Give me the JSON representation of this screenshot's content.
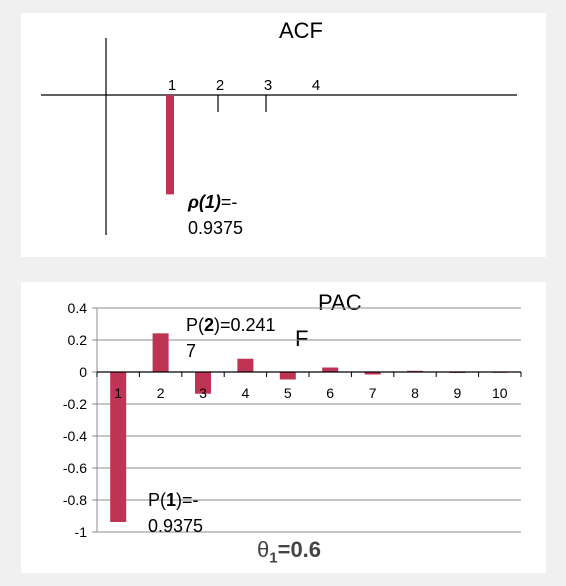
{
  "colors": {
    "bar": "#bf3455",
    "axis": "#000000",
    "grid": "#8c8c8c",
    "background": "#f0f0f0",
    "panel": "#ffffff"
  },
  "chart_data": [
    {
      "type": "bar",
      "title": "ACF",
      "categories": [
        "1",
        "2",
        "3",
        "4"
      ],
      "values": [
        -0.9375,
        0,
        0,
        0
      ],
      "annotation": {
        "line1_symbol": "ρ(1)",
        "line1_rest": "=-",
        "line2": "0.9375"
      },
      "grid": false
    },
    {
      "type": "bar",
      "title_line1": "PAC",
      "title_line2": "F",
      "categories": [
        "1",
        "2",
        "3",
        "4",
        "5",
        "6",
        "7",
        "8",
        "9",
        "10"
      ],
      "values": [
        -0.9375,
        0.2417,
        -0.1358,
        0.083,
        -0.0468,
        0.028,
        -0.0158,
        0.0075,
        -0.0043,
        0.0015
      ],
      "ylim": [
        -1,
        0.4
      ],
      "yticks": [
        "0.4",
        "0.2",
        "0",
        "-0.2",
        "-0.4",
        "-0.6",
        "-0.8",
        "-1"
      ],
      "ytick_values": [
        0.4,
        0.2,
        0,
        -0.2,
        -0.4,
        -0.6,
        -0.8,
        -1
      ],
      "grid": true,
      "annotation_p2": {
        "line1_prefix": "P(",
        "line1_bold": "2",
        "line1_suffix": ")=0.241",
        "line2": "7"
      },
      "annotation_p1": {
        "line1_prefix": "P(",
        "line1_bold": "1",
        "line1_suffix": ")=-",
        "line2": "0.9375"
      },
      "theta_label": {
        "symbol": "θ",
        "subscript": "1",
        "rest": "=0.6"
      }
    }
  ]
}
